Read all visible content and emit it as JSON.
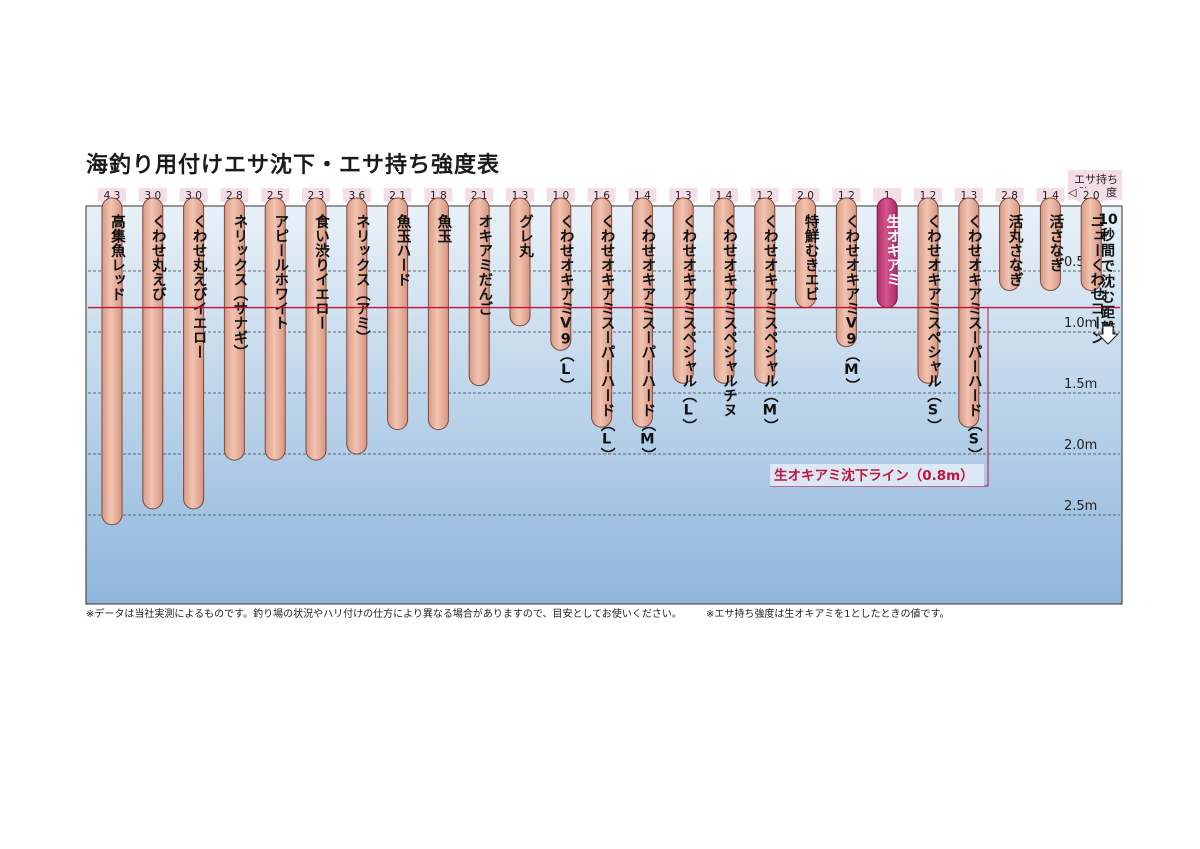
{
  "chart_data": {
    "type": "bar",
    "title": "海釣り用付けエサ沈下・エサ持ち強度表",
    "header": {
      "line1": "エサ持ち",
      "strong": "強",
      "degree": "度"
    },
    "yaxis_title": [
      "10",
      "秒",
      "間",
      "で",
      "沈",
      "む",
      "距",
      "離"
    ],
    "ticks": [
      {
        "value": 0.5,
        "label": "0.5m"
      },
      {
        "value": 1.0,
        "label": "1.0m"
      },
      {
        "value": 1.5,
        "label": "1.5m"
      },
      {
        "value": 2.0,
        "label": "2.0m"
      },
      {
        "value": 2.5,
        "label": "2.5m"
      }
    ],
    "ylim": [
      0,
      2.9
    ],
    "reference_line": {
      "value": 0.8,
      "label": "生オキアミ沈下ライン（0.8m）"
    },
    "categories": [
      {
        "label": "高集魚レッド",
        "strength": "4.3",
        "depth": 2.58
      },
      {
        "label": "くわせ丸えび",
        "strength": "3.0",
        "depth": 2.45
      },
      {
        "label": "くわせ丸えびイエロー",
        "strength": "3.0",
        "depth": 2.45
      },
      {
        "label": "ネリックス（サナギ）",
        "strength": "2.8",
        "depth": 2.05
      },
      {
        "label": "アピールホワイト",
        "strength": "2.5",
        "depth": 2.05
      },
      {
        "label": "食い渋りイエロー",
        "strength": "2.3",
        "depth": 2.05
      },
      {
        "label": "ネリックス（アミ）",
        "strength": "3.6",
        "depth": 2.0
      },
      {
        "label": "魚玉ハード",
        "strength": "2.1",
        "depth": 1.8
      },
      {
        "label": "魚玉",
        "strength": "1.8",
        "depth": 1.8
      },
      {
        "label": "オキアミだんご",
        "strength": "2.1",
        "depth": 1.44
      },
      {
        "label": "グレ丸",
        "strength": "1.3",
        "depth": 0.95
      },
      {
        "label": "くわせオキアミV9（L）",
        "strength": "1.0",
        "depth": 1.15
      },
      {
        "label": "くわせオキアミスーパーハード（L）",
        "strength": "1.6",
        "depth": 1.78
      },
      {
        "label": "くわせオキアミスーパーハード（M）",
        "strength": "1.4",
        "depth": 1.78
      },
      {
        "label": "くわせオキアミスペシャル（L）",
        "strength": "1.3",
        "depth": 1.42
      },
      {
        "label": "くわせオキアミスペシャルチヌ",
        "strength": "1.4",
        "depth": 1.42
      },
      {
        "label": "くわせオキアミスペシャル（M）",
        "strength": "1.2",
        "depth": 1.42
      },
      {
        "label": "特鮮むきエビ",
        "strength": "2.0",
        "depth": 0.8
      },
      {
        "label": "くわせオキアミV9（M）",
        "strength": "1.2",
        "depth": 1.12
      },
      {
        "label": "生オキアミ",
        "strength": "1",
        "depth": 0.8,
        "highlight": true
      },
      {
        "label": "くわせオキアミスペシャル（S）",
        "strength": "1.2",
        "depth": 1.42
      },
      {
        "label": "くわせオキアミスーパーハード（S）",
        "strength": "1.3",
        "depth": 1.78
      },
      {
        "label": "活丸さなぎ",
        "strength": "2.8",
        "depth": 0.66
      },
      {
        "label": "活さなぎ",
        "strength": "1.4",
        "depth": 0.66
      },
      {
        "label": "ニューくわせコーン",
        "strength": "2.0",
        "depth": 0.66
      }
    ],
    "colors": {
      "bar": "#e8b09c",
      "bar_stroke": "#7a4a3c",
      "highlight": "#c43d78",
      "highlight_stroke": "#7a1a48",
      "reference": "#c0143c",
      "water_top": "#e8f1f8",
      "water_bottom": "#8fb6dc"
    }
  },
  "footnotes": {
    "left": "※データは当社実測によるものです。釣り場の状況やハリ付けの仕方により異なる場合がありますので、目安としてお使いください。",
    "right": "※エサ持ち強度は生オキアミを1としたときの値です。"
  }
}
